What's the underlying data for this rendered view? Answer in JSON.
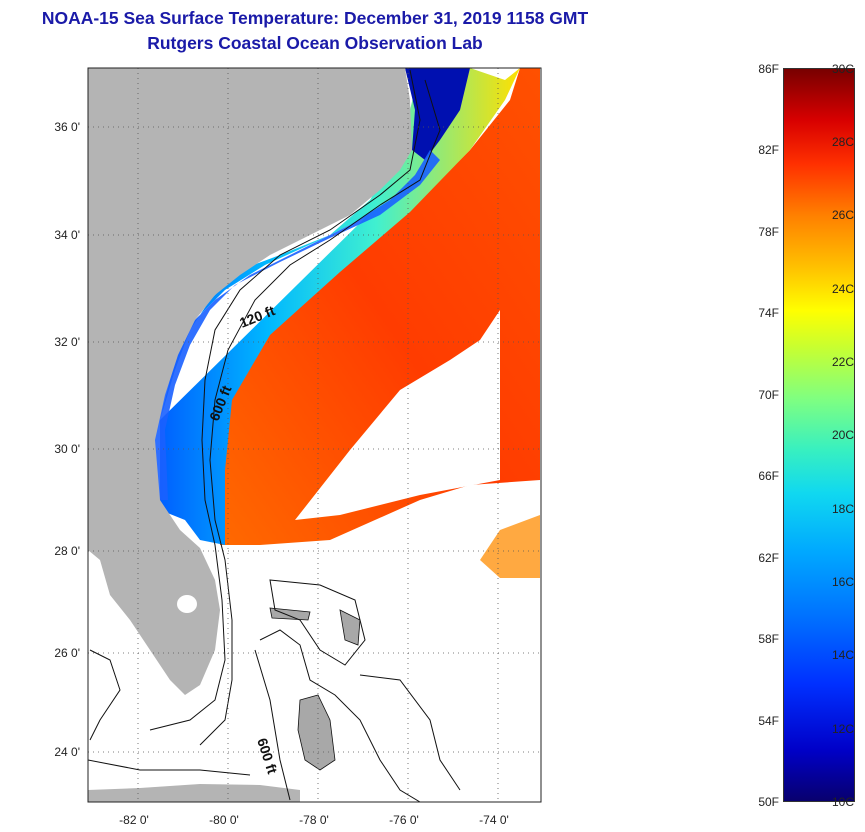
{
  "title": {
    "line1": "NOAA-15 Sea Surface Temperature:  December 31, 2019 1158 GMT",
    "line2": "Rutgers Coastal Ocean Observation Lab"
  },
  "axes": {
    "lat_ticks": [
      "36 0'",
      "34 0'",
      "32 0'",
      "30 0'",
      "28 0'",
      "26 0'",
      "24 0'"
    ],
    "lon_ticks": [
      "-82 0'",
      "-80 0'",
      "-78 0'",
      "-76 0'",
      "-74 0'"
    ]
  },
  "contour_labels": [
    "120 ft",
    "600 ft",
    "600 ft"
  ],
  "colorbar": {
    "fahrenheit": [
      "86F",
      "82F",
      "78F",
      "74F",
      "70F",
      "66F",
      "62F",
      "58F",
      "54F",
      "50F"
    ],
    "celsius": [
      "30C",
      "28C",
      "26C",
      "24C",
      "22C",
      "20C",
      "18C",
      "16C",
      "14C",
      "12C",
      "10C"
    ]
  },
  "colors": {
    "title": "#1a1aa8",
    "land": "#b4b4b4",
    "warm": "#ff5a00",
    "cold": "#0010b0"
  }
}
